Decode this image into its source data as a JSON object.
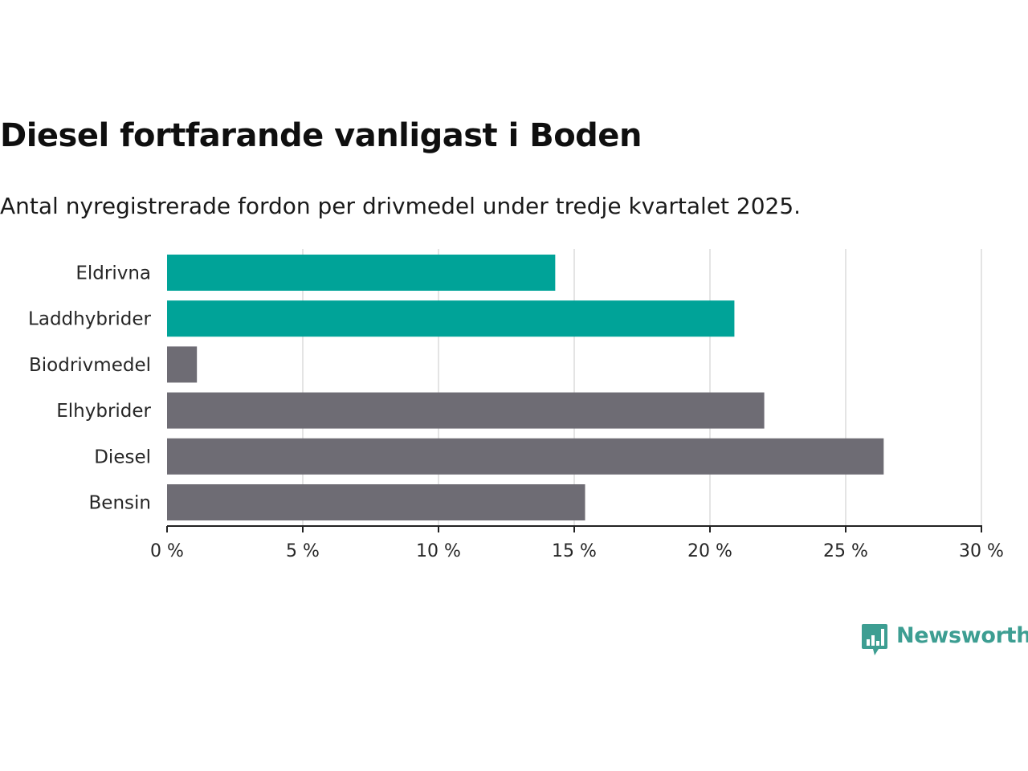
{
  "header": {
    "title": "Diesel fortfarande vanligast i Boden",
    "subtitle": "Antal nyregistrerade fordon per drivmedel under tredje kvartalet 2025."
  },
  "brand": {
    "name": "Newsworthy",
    "color": "#3d9e92",
    "icon": "bar-chart-bubble-icon"
  },
  "chart_data": {
    "type": "bar",
    "orientation": "horizontal",
    "title": "Diesel fortfarande vanligast i Boden",
    "subtitle": "Antal nyregistrerade fordon per drivmedel under tredje kvartalet 2025.",
    "xlabel": "",
    "ylabel": "",
    "categories": [
      "Eldrivna",
      "Laddhybrider",
      "Biodrivmedel",
      "Elhybrider",
      "Diesel",
      "Bensin"
    ],
    "values": [
      14.3,
      20.9,
      1.1,
      22.0,
      26.4,
      15.4
    ],
    "bar_colors": [
      "#00a398",
      "#00a398",
      "#6e6c74",
      "#6e6c74",
      "#6e6c74",
      "#6e6c74"
    ],
    "xlim": [
      0,
      30
    ],
    "ticks": [
      0,
      5,
      10,
      15,
      20,
      25,
      30
    ],
    "tick_labels": [
      "0 %",
      "5 %",
      "10 %",
      "15 %",
      "20 %",
      "25 %",
      "30 %"
    ],
    "grid": true,
    "legend": "none"
  }
}
